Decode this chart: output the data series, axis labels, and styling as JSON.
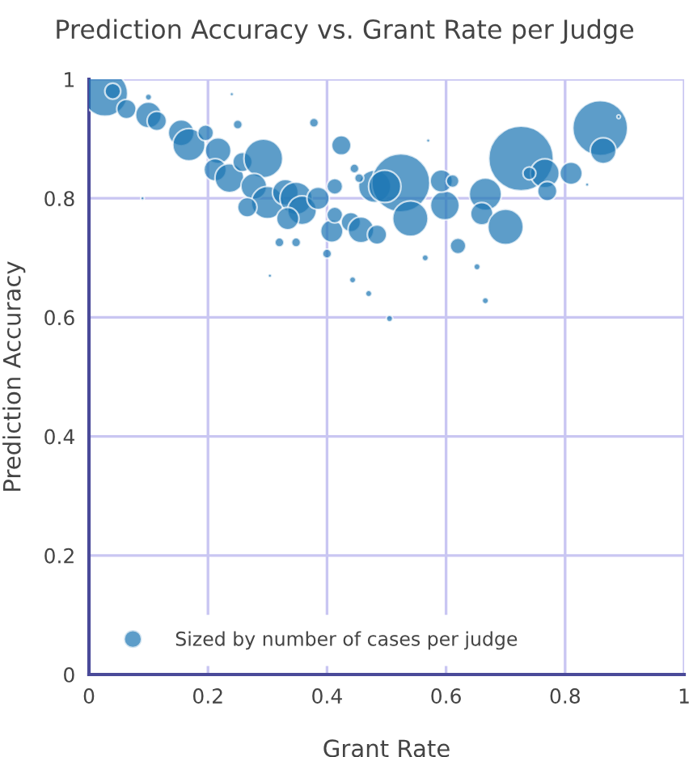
{
  "chart_data": {
    "type": "bubble",
    "title": "Prediction Accuracy vs. Grant Rate per Judge",
    "xlabel": "Grant Rate",
    "ylabel": "Prediction Accuracy",
    "xlim": [
      0,
      1
    ],
    "ylim": [
      0,
      1
    ],
    "xticks": [
      0,
      0.2,
      0.4,
      0.6,
      0.8,
      1
    ],
    "yticks": [
      0,
      0.2,
      0.4,
      0.6,
      0.8,
      1
    ],
    "grid": true,
    "legend": "bottom left",
    "series": [
      {
        "name": "Sized by number of cases per judge",
        "color": "#1f77b4",
        "x": [
          0.027,
          0.04,
          0.063,
          0.1,
          0.114,
          0.155,
          0.168,
          0.217,
          0.196,
          0.212,
          0.236,
          0.258,
          0.293,
          0.277,
          0.3,
          0.266,
          0.33,
          0.348,
          0.358,
          0.334,
          0.385,
          0.413,
          0.408,
          0.413,
          0.44,
          0.457,
          0.48,
          0.484,
          0.4,
          0.424,
          0.378,
          0.32,
          0.348,
          0.443,
          0.47,
          0.25,
          0.1,
          0.446,
          0.454,
          0.304,
          0.09,
          0.24,
          0.524,
          0.497,
          0.54,
          0.598,
          0.592,
          0.611,
          0.62,
          0.666,
          0.66,
          0.7,
          0.726,
          0.766,
          0.77,
          0.81,
          0.859,
          0.864,
          0.74,
          0.652,
          0.666,
          0.505,
          0.565,
          0.89,
          0.837,
          0.57
        ],
        "values": [
          0.976,
          0.98,
          0.95,
          0.94,
          0.93,
          0.91,
          0.89,
          0.88,
          0.91,
          0.848,
          0.834,
          0.861,
          0.867,
          0.82,
          0.793,
          0.785,
          0.81,
          0.8,
          0.78,
          0.766,
          0.8,
          0.82,
          0.745,
          0.772,
          0.76,
          0.747,
          0.82,
          0.739,
          0.707,
          0.889,
          0.927,
          0.726,
          0.726,
          0.663,
          0.64,
          0.924,
          0.97,
          0.85,
          0.834,
          0.67,
          0.8,
          0.975,
          0.826,
          0.82,
          0.766,
          0.788,
          0.829,
          0.829,
          0.72,
          0.807,
          0.774,
          0.752,
          0.867,
          0.842,
          0.812,
          0.842,
          0.918,
          0.88,
          0.842,
          0.685,
          0.628,
          0.598,
          0.7,
          0.937,
          0.823,
          0.897
        ],
        "sizes": [
          0.49,
          0.06,
          0.09,
          0.16,
          0.09,
          0.16,
          0.25,
          0.16,
          0.06,
          0.12,
          0.2,
          0.09,
          0.36,
          0.16,
          0.25,
          0.09,
          0.16,
          0.25,
          0.2,
          0.12,
          0.12,
          0.06,
          0.12,
          0.06,
          0.09,
          0.16,
          0.25,
          0.09,
          0.02,
          0.09,
          0.02,
          0.02,
          0.02,
          0.01,
          0.01,
          0.02,
          0.01,
          0.02,
          0.02,
          0.003,
          0.003,
          0.003,
          0.81,
          0.25,
          0.3,
          0.2,
          0.12,
          0.04,
          0.06,
          0.25,
          0.12,
          0.3,
          1,
          0.2,
          0.09,
          0.12,
          0.72,
          0.16,
          0.04,
          0.01,
          0.01,
          0.01,
          0.01,
          0.003,
          0.003,
          0.003
        ]
      }
    ]
  }
}
